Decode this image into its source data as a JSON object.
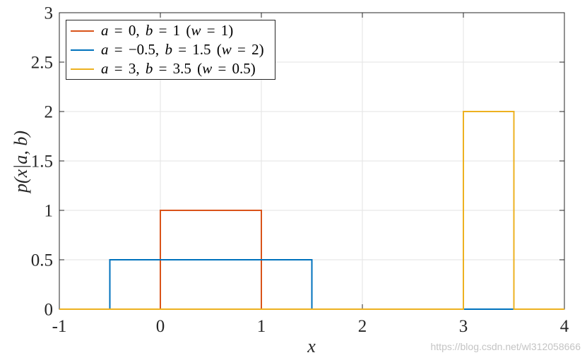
{
  "chart_data": {
    "type": "line",
    "xlabel": "x",
    "ylabel": "p(x|a, b)",
    "xlim": [
      -1,
      4
    ],
    "ylim": [
      0,
      3
    ],
    "xticks": [
      -1,
      0,
      1,
      2,
      3,
      4
    ],
    "xtick_labels": [
      "-1",
      "0",
      "1",
      "2",
      "3",
      "4"
    ],
    "yticks": [
      0,
      0.5,
      1,
      1.5,
      2,
      2.5,
      3
    ],
    "ytick_labels": [
      "0",
      "0.5",
      "1",
      "1.5",
      "2",
      "2.5",
      "3"
    ],
    "grid": true,
    "legend_position": "top-left",
    "series": [
      {
        "name": "a = 0, b = 1 (w = 1)",
        "color": "#D95319",
        "x": [
          -1,
          0,
          0,
          1,
          1,
          4
        ],
        "y": [
          0,
          0,
          1,
          1,
          0,
          0
        ]
      },
      {
        "name": "a = −0.5, b = 1.5 (w = 2)",
        "color": "#0072BD",
        "x": [
          -1,
          -0.5,
          -0.5,
          1.5,
          1.5,
          4
        ],
        "y": [
          0,
          0,
          0.5,
          0.5,
          0,
          0
        ]
      },
      {
        "name": "a = 3, b = 3.5 (w = 0.5)",
        "color": "#EDB120",
        "x": [
          -1,
          3,
          3,
          3.5,
          3.5,
          4
        ],
        "y": [
          0,
          0,
          2,
          2,
          0,
          0
        ]
      }
    ]
  },
  "watermark": "https://blog.csdn.net/wl312058666"
}
